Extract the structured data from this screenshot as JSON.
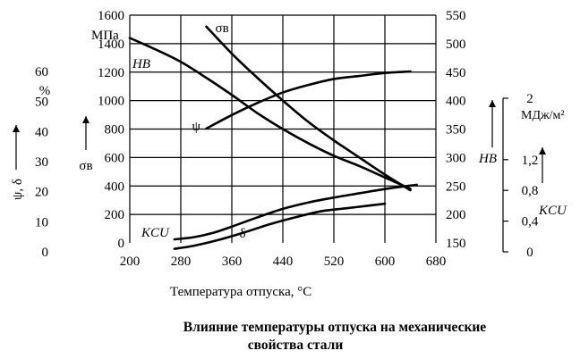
{
  "chart_data": {
    "type": "line",
    "x_axis": {
      "label": "Температура отпуска, °C",
      "ticks": [
        "200",
        "280",
        "360",
        "440",
        "520",
        "600",
        "680"
      ],
      "range": [
        200,
        680
      ]
    },
    "axes": {
      "sigma": {
        "unit": "МПа",
        "symbol": "σв",
        "ticks": [
          "0",
          "200",
          "400",
          "600",
          "800",
          "1000",
          "1200",
          "1400",
          "1600"
        ],
        "range": [
          0,
          1600
        ]
      },
      "psi_delta": {
        "unit": "%",
        "symbol": "ψ, δ",
        "ticks": [
          "0",
          "10",
          "20",
          "30",
          "40",
          "50",
          "60"
        ],
        "range": [
          0,
          60
        ]
      },
      "hb": {
        "symbol": "HB",
        "ticks": [
          "150",
          "200",
          "250",
          "300",
          "350",
          "400",
          "450",
          "500",
          "550"
        ],
        "range": [
          150,
          550
        ]
      },
      "kcu": {
        "unit": "МДж/м²",
        "symbol": "KCU",
        "ticks": [
          "0",
          "0,4",
          "0,8",
          "1,2",
          "2"
        ],
        "values": [
          0,
          0.4,
          0.8,
          1.2,
          2
        ]
      }
    },
    "series": [
      {
        "name": "σв",
        "axis": "sigma",
        "x": [
          320,
          360,
          400,
          440,
          480,
          520,
          560,
          600,
          640
        ],
        "y": [
          1520,
          1330,
          1160,
          1000,
          850,
          720,
          600,
          480,
          370
        ]
      },
      {
        "name": "HB",
        "axis": "hb",
        "x": [
          200,
          240,
          280,
          320,
          360,
          400,
          440,
          480,
          520,
          560,
          600,
          640
        ],
        "y": [
          510,
          490,
          468,
          440,
          410,
          378,
          350,
          325,
          303,
          285,
          265,
          245
        ]
      },
      {
        "name": "ψ",
        "axis": "psi_delta",
        "x": [
          320,
          360,
          400,
          440,
          480,
          520,
          560,
          600,
          640
        ],
        "y": [
          41,
          45.5,
          49.5,
          53,
          55.5,
          57.5,
          58.5,
          59.5,
          60
        ]
      },
      {
        "name": "δ",
        "axis": "psi_delta",
        "x": [
          270,
          300,
          340,
          380,
          420,
          460,
          500,
          540,
          580,
          600
        ],
        "y": [
          1,
          2,
          4,
          6.5,
          9.2,
          11.5,
          13.5,
          14.5,
          15.5,
          16
        ]
      },
      {
        "name": "KCU",
        "axis": "kcu_plot",
        "x": [
          270,
          300,
          330,
          360,
          400,
          440,
          480,
          520,
          560,
          600,
          650
        ],
        "y": [
          0.05,
          0.08,
          0.14,
          0.23,
          0.36,
          0.48,
          0.57,
          0.64,
          0.7,
          0.76,
          0.82
        ]
      }
    ],
    "curve_labels": [
      {
        "text": "σв",
        "series": "σв"
      },
      {
        "text": "HB",
        "series": "HB"
      },
      {
        "text": "ψ",
        "series": "ψ"
      },
      {
        "text": "δ",
        "series": "δ"
      },
      {
        "text": "KCU",
        "series": "KCU"
      }
    ],
    "grid": true
  },
  "caption": {
    "line1": "Влияние температуры отпуска на механические",
    "line2": "свойства стали"
  }
}
